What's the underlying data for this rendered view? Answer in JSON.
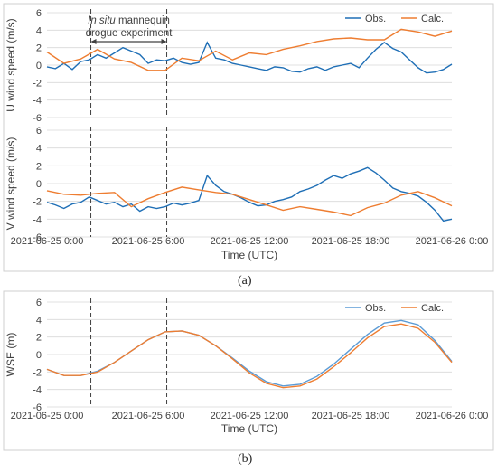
{
  "panel_labels": {
    "a": "(a)",
    "b": "(b)"
  },
  "chart_data": [
    {
      "type": "line",
      "ylabel": "U wind speed (m/s)",
      "ylim": [
        -6,
        6
      ],
      "yticks": [
        -6,
        -4,
        -2,
        0,
        2,
        4,
        6
      ],
      "xlim": [
        0,
        24
      ],
      "grid": true,
      "legend_position": "top-right",
      "annotation": {
        "italic": "In situ",
        "rest_line1": " mannequin",
        "line2": "drogue experiment",
        "span_hours": [
          2.6,
          7.1
        ]
      },
      "vlines_hours": [
        2.6,
        7.1
      ],
      "series": [
        {
          "name": "Obs.",
          "color": "#1f6fb6",
          "x": [
            0,
            0.5,
            1,
            1.5,
            2,
            2.5,
            3,
            3.5,
            4,
            4.5,
            5,
            5.5,
            6,
            6.5,
            7,
            7.5,
            8,
            8.5,
            9,
            9.5,
            10,
            10.5,
            11,
            11.5,
            12,
            12.5,
            13,
            13.5,
            14,
            14.5,
            15,
            15.5,
            16,
            16.5,
            17,
            17.5,
            18,
            18.5,
            19,
            19.5,
            20,
            20.5,
            21,
            21.5,
            22,
            22.5,
            23,
            23.5,
            24
          ],
          "y": [
            -0.2,
            -0.4,
            0.2,
            -0.5,
            0.4,
            0.6,
            1.2,
            0.8,
            1.4,
            2.0,
            1.6,
            1.2,
            0.2,
            0.6,
            0.5,
            0.8,
            0.3,
            0.1,
            0.3,
            2.6,
            0.8,
            0.6,
            0.2,
            0.0,
            -0.2,
            -0.4,
            -0.6,
            -0.2,
            -0.3,
            -0.7,
            -0.8,
            -0.4,
            -0.2,
            -0.6,
            -0.2,
            0.0,
            0.2,
            -0.3,
            0.8,
            1.8,
            2.6,
            1.9,
            1.5,
            0.6,
            -0.3,
            -0.9,
            -0.8,
            -0.5,
            0.1
          ]
        },
        {
          "name": "Calc.",
          "color": "#ee7d31",
          "x": [
            0,
            1,
            2,
            3,
            4,
            5,
            6,
            7,
            8,
            9,
            10,
            11,
            12,
            13,
            14,
            15,
            16,
            17,
            18,
            19,
            20,
            21,
            22,
            23,
            24
          ],
          "y": [
            1.5,
            0.2,
            0.7,
            1.8,
            0.7,
            0.3,
            -0.6,
            -0.6,
            0.8,
            0.5,
            1.6,
            0.6,
            1.4,
            1.2,
            1.8,
            2.2,
            2.7,
            3.0,
            3.1,
            2.9,
            2.9,
            4.1,
            3.8,
            3.3,
            3.9
          ]
        }
      ]
    },
    {
      "type": "line",
      "ylabel": "V wind speed (m/s)",
      "xlabel": "Time (UTC)",
      "ylim": [
        -6,
        6
      ],
      "yticks": [
        -6,
        -4,
        -2,
        0,
        2,
        4,
        6
      ],
      "xlim": [
        0,
        24
      ],
      "xtick_hours": [
        0,
        6,
        12,
        18,
        24
      ],
      "xtick_labels": [
        "2021-06-25 0:00",
        "2021-06-25 6:00",
        "2021-06-25 12:00",
        "2021-06-25 18:00",
        "2021-06-26 0:00"
      ],
      "grid": true,
      "vlines_hours": [
        2.6,
        7.1
      ],
      "series": [
        {
          "name": "Obs.",
          "color": "#1f6fb6",
          "x": [
            0,
            0.5,
            1,
            1.5,
            2,
            2.5,
            3,
            3.5,
            4,
            4.5,
            5,
            5.5,
            6,
            6.5,
            7,
            7.5,
            8,
            8.5,
            9,
            9.5,
            10,
            10.5,
            11,
            11.5,
            12,
            12.5,
            13,
            13.5,
            14,
            14.5,
            15,
            15.5,
            16,
            16.5,
            17,
            17.5,
            18,
            18.5,
            19,
            19.5,
            20,
            20.5,
            21,
            21.5,
            22,
            22.5,
            23,
            23.5,
            24
          ],
          "y": [
            -2.1,
            -2.4,
            -2.8,
            -2.3,
            -2.1,
            -1.5,
            -1.9,
            -2.3,
            -2.1,
            -2.6,
            -2.3,
            -3.1,
            -2.6,
            -2.8,
            -2.6,
            -2.2,
            -2.4,
            -2.2,
            -1.9,
            0.9,
            -0.2,
            -0.9,
            -1.2,
            -1.6,
            -2.1,
            -2.5,
            -2.4,
            -2.0,
            -1.8,
            -1.5,
            -0.9,
            -0.6,
            -0.2,
            0.4,
            0.9,
            0.6,
            1.1,
            1.4,
            1.8,
            1.2,
            0.4,
            -0.5,
            -0.9,
            -1.1,
            -1.4,
            -2.1,
            -3.0,
            -4.2,
            -4.0
          ]
        },
        {
          "name": "Calc.",
          "color": "#ee7d31",
          "x": [
            0,
            1,
            2,
            3,
            4,
            5,
            6,
            7,
            8,
            9,
            10,
            11,
            12,
            13,
            14,
            15,
            16,
            17,
            18,
            19,
            20,
            21,
            22,
            23,
            24
          ],
          "y": [
            -0.8,
            -1.2,
            -1.3,
            -1.1,
            -1.0,
            -2.6,
            -1.7,
            -1.0,
            -0.4,
            -0.7,
            -1.0,
            -1.2,
            -1.8,
            -2.4,
            -3.0,
            -2.6,
            -2.9,
            -3.2,
            -3.6,
            -2.7,
            -2.2,
            -1.3,
            -0.9,
            -1.6,
            -2.5
          ]
        }
      ]
    },
    {
      "type": "line",
      "ylabel": "WSE (m)",
      "xlabel": "Time (UTC)",
      "ylim": [
        -6,
        6
      ],
      "yticks": [
        -6,
        -4,
        -2,
        0,
        2,
        4,
        6
      ],
      "xlim": [
        0,
        24
      ],
      "xtick_hours": [
        0,
        6,
        12,
        18,
        24
      ],
      "xtick_labels": [
        "2021-06-25 0:00",
        "2021-06-25 6:00",
        "2021-06-25 12:00",
        "2021-06-25 18:00",
        "2021-06-26 0:00"
      ],
      "grid": true,
      "legend_position": "top-right",
      "vlines_hours": [
        2.6,
        7.1
      ],
      "series": [
        {
          "name": "Obs.",
          "color": "#5b9bd5",
          "x": [
            0,
            1,
            2,
            3,
            4,
            5,
            6,
            7,
            8,
            9,
            10,
            11,
            12,
            13,
            14,
            15,
            16,
            17,
            18,
            19,
            20,
            21,
            22,
            23,
            24
          ],
          "y": [
            -1.7,
            -2.4,
            -2.4,
            -1.9,
            -0.9,
            0.4,
            1.7,
            2.6,
            2.7,
            2.2,
            1.0,
            -0.4,
            -1.9,
            -3.1,
            -3.6,
            -3.4,
            -2.5,
            -1.1,
            0.6,
            2.3,
            3.6,
            3.9,
            3.4,
            1.6,
            -0.8
          ]
        },
        {
          "name": "Calc.",
          "color": "#ee7d31",
          "x": [
            0,
            1,
            2,
            3,
            4,
            5,
            6,
            7,
            8,
            9,
            10,
            11,
            12,
            13,
            14,
            15,
            16,
            17,
            18,
            19,
            20,
            21,
            22,
            23,
            24
          ],
          "y": [
            -1.7,
            -2.4,
            -2.4,
            -2.0,
            -0.9,
            0.4,
            1.7,
            2.6,
            2.7,
            2.2,
            1.0,
            -0.5,
            -2.1,
            -3.3,
            -3.8,
            -3.6,
            -2.8,
            -1.4,
            0.2,
            1.9,
            3.2,
            3.5,
            3.0,
            1.4,
            -0.9
          ]
        }
      ]
    }
  ]
}
